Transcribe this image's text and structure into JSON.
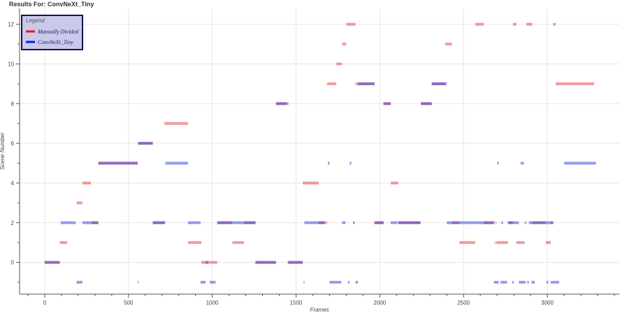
{
  "chart_data": {
    "type": "segments",
    "title": "Results For: ConvNeXt_Tiny",
    "xlabel": "Frames",
    "ylabel": "Scene Number",
    "xlim": [
      -150,
      3430
    ],
    "ylim": [
      -1.6,
      12.8
    ],
    "xticks": [
      0,
      500,
      1000,
      1500,
      2000,
      2500,
      3000
    ],
    "yticks": [
      0,
      2,
      4,
      6,
      8,
      10,
      12
    ],
    "grid": true,
    "legend": {
      "title": "Legend",
      "position": "top-left"
    },
    "series": [
      {
        "name": "Manually Divided",
        "color": "#e8383d",
        "opacity": 0.5,
        "segments": [
          [
            0,
            90,
            0
          ],
          [
            90,
            135,
            1
          ],
          [
            190,
            225,
            3
          ],
          [
            225,
            275,
            4
          ],
          [
            280,
            320,
            2
          ],
          [
            320,
            555,
            5
          ],
          [
            555,
            645,
            6
          ],
          [
            645,
            715,
            2
          ],
          [
            715,
            855,
            7
          ],
          [
            855,
            935,
            1
          ],
          [
            935,
            1030,
            0
          ],
          [
            1030,
            1120,
            2
          ],
          [
            1120,
            1190,
            1
          ],
          [
            1190,
            1255,
            2
          ],
          [
            1255,
            1380,
            0
          ],
          [
            1380,
            1455,
            8
          ],
          [
            1455,
            1540,
            0
          ],
          [
            1540,
            1635,
            4
          ],
          [
            1635,
            1685,
            2
          ],
          [
            1685,
            1740,
            9
          ],
          [
            1740,
            1775,
            10
          ],
          [
            1775,
            1800,
            11
          ],
          [
            1800,
            1855,
            12
          ],
          [
            1855,
            1965,
            9
          ],
          [
            1965,
            2020,
            2
          ],
          [
            2020,
            2065,
            8
          ],
          [
            2065,
            2110,
            4
          ],
          [
            2110,
            2245,
            2
          ],
          [
            2245,
            2310,
            8
          ],
          [
            2310,
            2390,
            9
          ],
          [
            2390,
            2430,
            11
          ],
          [
            2430,
            2475,
            2
          ],
          [
            2475,
            2570,
            1
          ],
          [
            2570,
            2620,
            12
          ],
          [
            2620,
            2685,
            2
          ],
          [
            2685,
            2690,
            1
          ],
          [
            2690,
            2695,
            2
          ],
          [
            2695,
            2765,
            1
          ],
          [
            2765,
            2795,
            2
          ],
          [
            2795,
            2815,
            12
          ],
          [
            2815,
            2865,
            1
          ],
          [
            2865,
            2875,
            2
          ],
          [
            2875,
            2910,
            12
          ],
          [
            2910,
            2990,
            2
          ],
          [
            2990,
            3020,
            1
          ],
          [
            3020,
            3035,
            2
          ],
          [
            3035,
            3050,
            12
          ],
          [
            3050,
            3280,
            9
          ]
        ]
      },
      {
        "name": "ConvNeXt_Tiny",
        "color": "#2f3ee0",
        "opacity": 0.5,
        "segments": [
          [
            0,
            90,
            0
          ],
          [
            95,
            185,
            2
          ],
          [
            190,
            225,
            -1
          ],
          [
            225,
            280,
            2
          ],
          [
            280,
            320,
            2
          ],
          [
            320,
            555,
            5
          ],
          [
            555,
            560,
            -1
          ],
          [
            560,
            645,
            6
          ],
          [
            645,
            705,
            2
          ],
          [
            705,
            720,
            2
          ],
          [
            720,
            855,
            5
          ],
          [
            855,
            930,
            2
          ],
          [
            930,
            960,
            -1
          ],
          [
            960,
            975,
            0
          ],
          [
            985,
            1020,
            -1
          ],
          [
            1030,
            1260,
            2
          ],
          [
            1260,
            1380,
            0
          ],
          [
            1380,
            1445,
            8
          ],
          [
            1450,
            1540,
            0
          ],
          [
            1545,
            1550,
            -1
          ],
          [
            1550,
            1670,
            2
          ],
          [
            1690,
            1700,
            5
          ],
          [
            1700,
            1770,
            -1
          ],
          [
            1775,
            1795,
            2
          ],
          [
            1810,
            1820,
            -1
          ],
          [
            1820,
            1830,
            5
          ],
          [
            1840,
            1850,
            2
          ],
          [
            1855,
            1870,
            -1
          ],
          [
            1870,
            1970,
            9
          ],
          [
            1970,
            2025,
            2
          ],
          [
            2025,
            2065,
            8
          ],
          [
            2065,
            2105,
            2
          ],
          [
            2110,
            2240,
            2
          ],
          [
            2245,
            2310,
            8
          ],
          [
            2310,
            2400,
            9
          ],
          [
            2400,
            2680,
            2
          ],
          [
            2680,
            2710,
            -1
          ],
          [
            2700,
            2710,
            5
          ],
          [
            2720,
            2760,
            -1
          ],
          [
            2725,
            2735,
            2
          ],
          [
            2765,
            2830,
            2
          ],
          [
            2790,
            2800,
            -1
          ],
          [
            2830,
            2870,
            -1
          ],
          [
            2840,
            2860,
            5
          ],
          [
            2880,
            2890,
            -1
          ],
          [
            2890,
            3035,
            2
          ],
          [
            2905,
            2925,
            -1
          ],
          [
            2995,
            3005,
            -1
          ],
          [
            3020,
            3070,
            -1
          ],
          [
            3100,
            3290,
            5
          ]
        ]
      }
    ]
  },
  "colors": {
    "grid": "#e6e6e6",
    "axis": "#555555",
    "legend_bg": "#c9c9e9",
    "legend_border": "#111155"
  }
}
